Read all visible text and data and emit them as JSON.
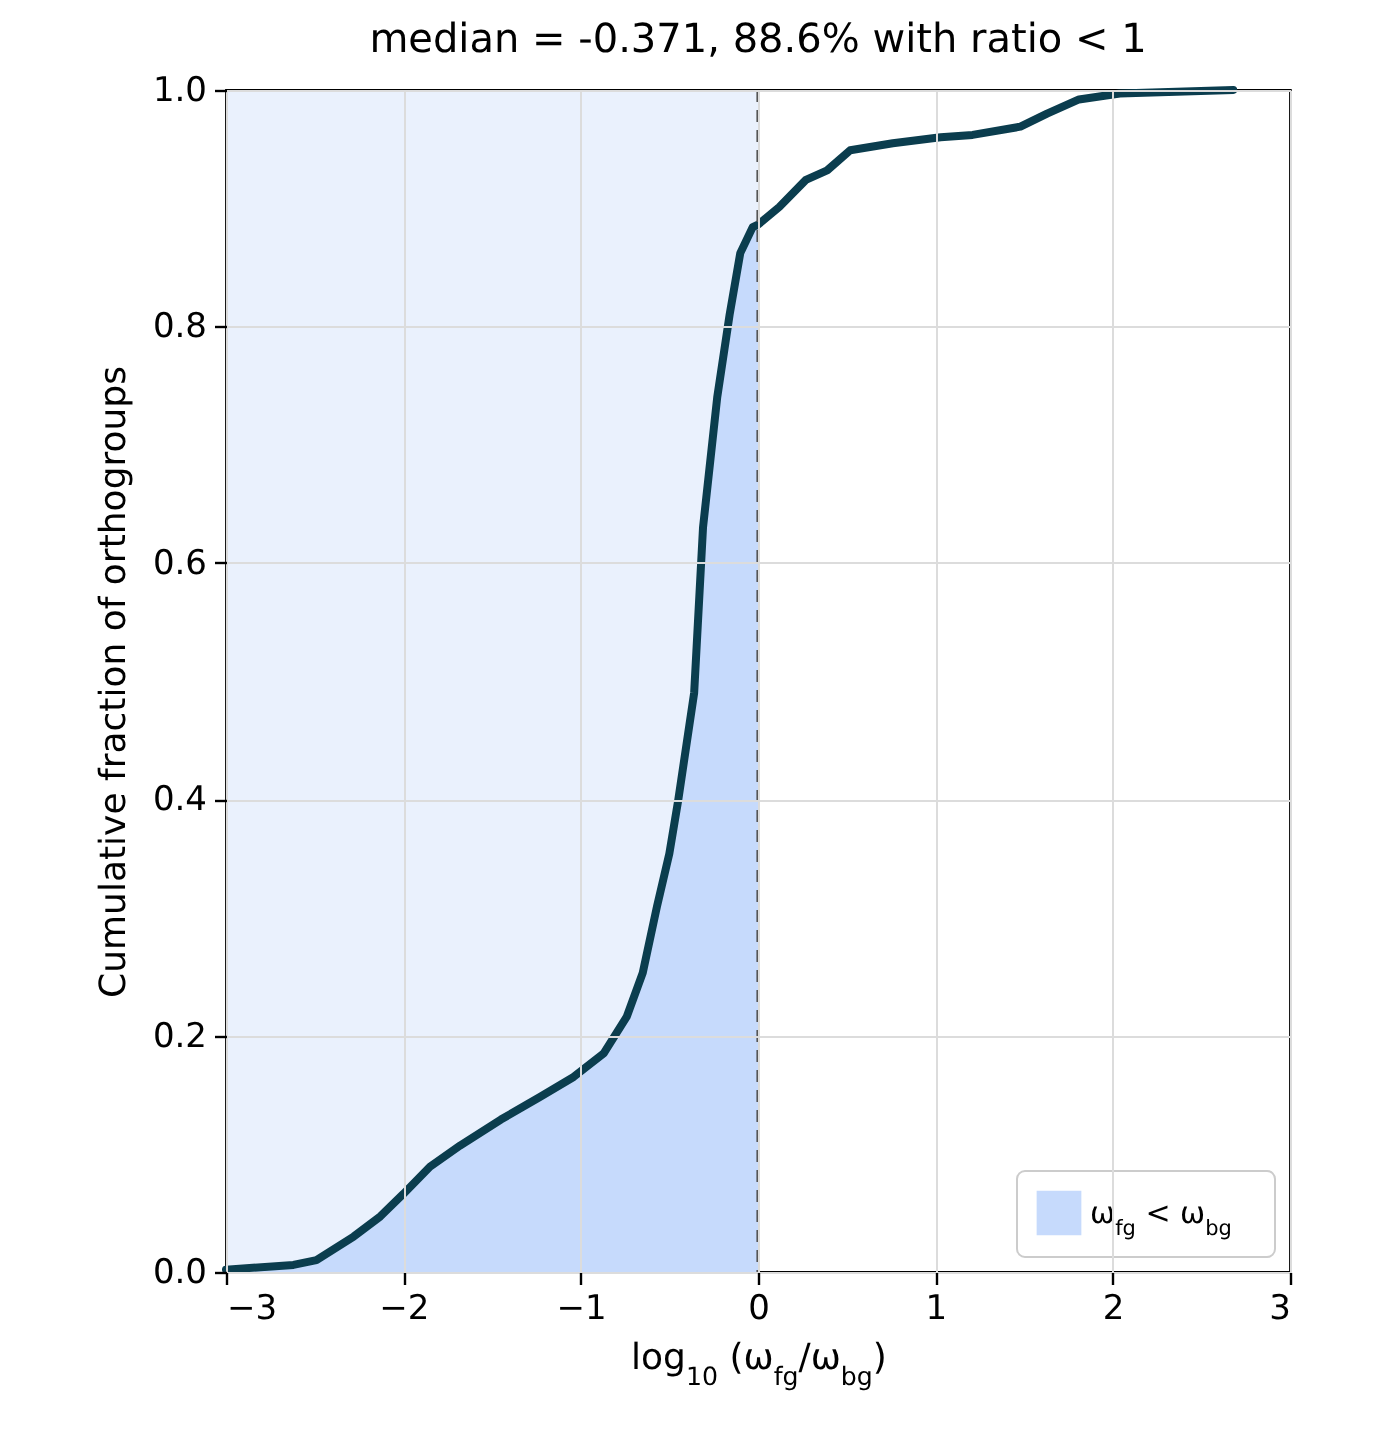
{
  "chart_data": {
    "type": "line",
    "title": "median = -0.371, 88.6% with ratio < 1",
    "xlabel": "log$_{10}$ (ω$_{fg}$/ω$_{bg}$)",
    "ylabel": "Cumulative fraction of orthogroups",
    "xlim": [
      -3,
      3
    ],
    "xticks": [
      {
        "value": -3,
        "label": "−3"
      },
      {
        "value": -2,
        "label": "−2"
      },
      {
        "value": -1,
        "label": "−1"
      },
      0,
      1,
      2,
      3
    ],
    "ylim": [
      0,
      1
    ],
    "yticks": [
      {
        "value": 0,
        "label": "0.0"
      },
      0.2,
      0.4,
      0.6,
      0.8,
      {
        "value": 1,
        "label": "1.0"
      }
    ],
    "grid": true,
    "legend": "bottom right",
    "series": [
      {
        "type": "area",
        "name": "ω$_{fg}$ < ω$_{bg}$",
        "color": "#c6dafc",
        "x": [
          -3,
          -2.62,
          -2.49,
          -2.28,
          -2.13,
          -2.0,
          -1.85,
          -1.68,
          -1.45,
          -1.23,
          -1.04,
          -0.87,
          -0.74,
          -0.65,
          -0.57,
          -0.5,
          -0.45,
          -0.36,
          -0.31,
          -0.23,
          -0.16,
          -0.1,
          -0.03,
          0
        ],
        "values": [
          0.002,
          0.006,
          0.01,
          0.03,
          0.047,
          0.066,
          0.089,
          0.107,
          0.129,
          0.148,
          0.165,
          0.185,
          0.216,
          0.253,
          0.309,
          0.354,
          0.399,
          0.49,
          0.63,
          0.74,
          0.81,
          0.862,
          0.884,
          0.886
        ]
      },
      {
        "color": "#0b3d4e",
        "x": [
          -3,
          -2.62,
          -2.49,
          -2.28,
          -2.13,
          -2.0,
          -1.85,
          -1.68,
          -1.45,
          -1.23,
          -1.04,
          -0.87,
          -0.74,
          -0.65,
          -0.57,
          -0.5,
          -0.45,
          -0.36,
          -0.31,
          -0.23,
          -0.16,
          -0.1,
          -0.03,
          0,
          0.12,
          0.27,
          0.39,
          0.52,
          0.76,
          1.03,
          1.21,
          1.48,
          1.63,
          1.81,
          2.04,
          2.68
        ],
        "values": [
          0.002,
          0.006,
          0.01,
          0.03,
          0.047,
          0.066,
          0.089,
          0.107,
          0.129,
          0.148,
          0.165,
          0.185,
          0.216,
          0.253,
          0.309,
          0.354,
          0.399,
          0.49,
          0.63,
          0.74,
          0.81,
          0.862,
          0.884,
          0.886,
          0.901,
          0.924,
          0.932,
          0.949,
          0.955,
          0.96,
          0.962,
          0.969,
          0.98,
          0.992,
          0.997,
          1.0
        ]
      }
    ],
    "bands": [
      {
        "axis": "x",
        "from": -3,
        "to": 0,
        "color": "#eaf1fd"
      }
    ],
    "ref_lines": [
      {
        "axis": "x",
        "value": 0,
        "color": "#555555",
        "line_style": "dashed"
      }
    ]
  }
}
